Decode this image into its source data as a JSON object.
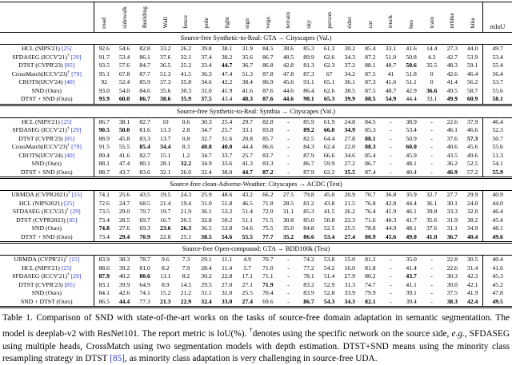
{
  "colors": {
    "citation_blue": "#2e3bd0",
    "text": "#000000"
  },
  "table": {
    "columns": [
      "road",
      "sidewalk",
      "Building",
      "Wall",
      "fence",
      "pole",
      "light",
      "sign",
      "vege.",
      "terrain",
      "sky",
      "person",
      "rider",
      "car",
      "truck",
      "bus",
      "train",
      "mbike",
      "bike",
      "mIoU"
    ],
    "sections": [
      {
        "title": "Source-free Synthetic-to-Real: GTA → Cityscapes (Val.)",
        "rows": [
          {
            "name": "HCL (NIPS'21)",
            "dagger": false,
            "ref": "[25]",
            "values": [
              "92.6",
              "54.6",
              "82.8",
              "33.2",
              "26.2",
              "39.8",
              "38.1",
              "31.9",
              "84.5",
              "38.6",
              "85.3",
              "61.3",
              "30.2",
              "85.4",
              "33.1",
              "41.6",
              "14.4",
              "27.3",
              "44.0",
              "49.7"
            ],
            "bold": []
          },
          {
            "name": "SFDASEG (ICCV'21)",
            "dagger": true,
            "ref": "[29]",
            "values": [
              "91.7",
              "53.4",
              "86.1",
              "37.6",
              "32.1",
              "37.4",
              "38.2",
              "35.6",
              "86.7",
              "48.5",
              "89.9",
              "62.6",
              "34.3",
              "87.2",
              "51.0",
              "50.8",
              "4.2",
              "42.7",
              "53.9",
              "53.4"
            ],
            "bold": []
          },
          {
            "name": "DTST (CVPR'23)",
            "dagger": false,
            "ref": "[85]",
            "values": [
              "93.5",
              "57.6",
              "84.7",
              "36.5",
              "25.2",
              "33.4",
              "44.7",
              "36.7",
              "86.8",
              "42.8",
              "81.3",
              "62.3",
              "37.2",
              "88.1",
              "48.7",
              "50.6",
              "35.5",
              "48.3",
              "59.1",
              "55.4"
            ],
            "bold": [
              6,
              15
            ]
          },
          {
            "name": "CrossMatch(ICCV'23)",
            "dagger": true,
            "ref": "[79]",
            "values": [
              "95.1",
              "67.8",
              "87.7",
              "51.3",
              "41.5",
              "36.3",
              "47.4",
              "51.3",
              "87.8",
              "47.8",
              "87.3",
              "67",
              "34.2",
              "87.5",
              "41",
              "51.8",
              "0",
              "42.6",
              "46.4",
              "56.4"
            ],
            "bold": []
          },
          {
            "name": "CROTS(IJCV'24)",
            "dagger": false,
            "ref": "[40]",
            "values": [
              "92",
              "52.4",
              "85.9",
              "37.3",
              "35.8",
              "34.6",
              "42.2",
              "38.4",
              "86.9",
              "45.6",
              "91.1",
              "65.1",
              "36.1",
              "87.3",
              "41.6",
              "51.1",
              "0",
              "41.4",
              "56.2",
              "53.7"
            ],
            "bold": []
          },
          {
            "name": "SND (Ours)",
            "dagger": false,
            "ref": "",
            "values": [
              "93.0",
              "54.0",
              "84.6",
              "35.6",
              "30.3",
              "31.0",
              "41.9",
              "41.6",
              "87.6",
              "44.6",
              "86.4",
              "62.6",
              "38.5",
              "87.5",
              "48.7",
              "42.9",
              "36.6",
              "49.5",
              "58.7",
              "55.6"
            ],
            "bold": [
              16
            ]
          },
          {
            "name": "DTST + SND (Ours)",
            "dagger": false,
            "ref": "",
            "values": [
              "93.9",
              "60.0",
              "86.7",
              "38.6",
              "35.9",
              "37.5",
              "43.4",
              "48.3",
              "87.6",
              "44.6",
              "90.1",
              "65.3",
              "39.9",
              "88.5",
              "54.9",
              "44.4",
              "33.1",
              "49.9",
              "60.9",
              "58.1"
            ],
            "bold": [
              0,
              1,
              2,
              3,
              4,
              5,
              7,
              8,
              9,
              10,
              11,
              12,
              13,
              14,
              17,
              18,
              19
            ]
          }
        ]
      },
      {
        "title": "Source-free Synthetic-to-Real: Synthia → Cityscapes (Val.)",
        "rows": [
          {
            "name": "HCL (NIPS'21)",
            "dagger": false,
            "ref": "[25]",
            "values": [
              "86.7",
              "38.1",
              "82.7",
              "10",
              "0.6",
              "30.3",
              "25.4",
              "29.7",
              "82.8",
              "-",
              "85.9",
              "61.9",
              "24.8",
              "84.5",
              "-",
              "38.9",
              "-",
              "22.6",
              "37.9",
              "46.4"
            ],
            "bold": []
          },
          {
            "name": "SFDASEG (ICCV'21)",
            "dagger": true,
            "ref": "[29]",
            "values": [
              "90.5",
              "50.0",
              "81.6",
              "13.3",
              "2.8",
              "34.7",
              "25.7",
              "33.1",
              "83.8",
              "-",
              "89.2",
              "66.0",
              "34.9",
              "85.3",
              "-",
              "53.4",
              "-",
              "46.1",
              "46.6",
              "52.3"
            ],
            "bold": [
              0,
              1,
              10,
              11,
              12
            ]
          },
          {
            "name": "DTST (CVPR'23)",
            "dagger": false,
            "ref": "[85]",
            "values": [
              "88.9",
              "45.8",
              "83.3",
              "13.7",
              "0.8",
              "32.7",
              "31.6",
              "20.8",
              "85.7",
              "-",
              "82.5",
              "64.4",
              "27.8",
              "88.1",
              "-",
              "50.9",
              "-",
              "37.6",
              "57.3",
              "50.7"
            ],
            "bold": [
              13,
              18
            ]
          },
          {
            "name": "CrossMatch(ICCV'23)",
            "dagger": true,
            "ref": "[79]",
            "values": [
              "91.5",
              "55.5",
              "85.4",
              "34.4",
              "8.3",
              "40.8",
              "40.0",
              "44.4",
              "86.6",
              "-",
              "84.3",
              "62.4",
              "22.0",
              "88.3",
              "-",
              "60.0",
              "-",
              "40.6",
              "45.6",
              "55.6"
            ],
            "bold": [
              2,
              3,
              5,
              6,
              13,
              15
            ]
          },
          {
            "name": "CROTS(IJCV'24)",
            "dagger": false,
            "ref": "[40]",
            "values": [
              "89.4",
              "41.6",
              "82.7",
              "15.1",
              "1.2",
              "34.7",
              "33.7",
              "25.7",
              "83.7",
              "-",
              "87.9",
              "66.6",
              "34.6",
              "85.4",
              "-",
              "45.9",
              "-",
              "43.5",
              "49.6",
              "51.3"
            ],
            "bold": []
          },
          {
            "name": "SND (Ours)",
            "dagger": false,
            "ref": "",
            "values": [
              "88.1",
              "47.4",
              "80.1",
              "28.1",
              "32.2",
              "34.9",
              "33.6",
              "41.3",
              "83.3",
              "-",
              "86.7",
              "59.9",
              "27.2",
              "86.7",
              "-",
              "48.1",
              "-",
              "36.2",
              "52.5",
              "54.1"
            ],
            "bold": [
              4
            ]
          },
          {
            "name": "DTST + SND (Ours)",
            "dagger": false,
            "ref": "",
            "values": [
              "88.7",
              "43.7",
              "83.6",
              "32.1",
              "26.0",
              "32.4",
              "38.0",
              "44.7",
              "87.2",
              "-",
              "87.9",
              "62.2",
              "35.5",
              "87.4",
              "-",
              "40.4",
              "-",
              "46.9",
              "57.2",
              "55.9"
            ],
            "bold": [
              7,
              8,
              12,
              17,
              19
            ]
          }
        ]
      },
      {
        "title": "Source-free clean-Adverse-Weather: Cityscapes → ACDC (Test)",
        "rows": [
          {
            "name": "URMDA (CVPR2021)",
            "dagger": true,
            "ref": "[15]",
            "values": [
              "74.1",
              "25.6",
              "43.5",
              "19.5",
              "24.3",
              "25.9",
              "48.6",
              "43.2",
              "66.2",
              "27.5",
              "79.8",
              "45.0",
              "20.9",
              "70.7",
              "36.8",
              "35.9",
              "32.7",
              "27.7",
              "29.9",
              "40.9"
            ],
            "bold": []
          },
          {
            "name": "HCL (NIPS2021)",
            "dagger": false,
            "ref": "[25]",
            "values": [
              "72.6",
              "24.7",
              "68.5",
              "21.4",
              "19.4",
              "31.0",
              "51.8",
              "46.5",
              "71.8",
              "28.5",
              "81.2",
              "43.8",
              "21.5",
              "76.8",
              "42.8",
              "44.4",
              "36.1",
              "30.1",
              "24.0",
              "44.0"
            ],
            "bold": []
          },
          {
            "name": "SFDASEG (ICCV21)",
            "dagger": true,
            "ref": "[29]",
            "values": [
              "73.5",
              "29.0",
              "70.7",
              "19.7",
              "21.9",
              "36.1",
              "53.2",
              "51.4",
              "72.0",
              "31.1",
              "85.3",
              "41.5",
              "26.2",
              "76.4",
              "41.9",
              "46.1",
              "39.8",
              "33.3",
              "32.0",
              "46.4"
            ],
            "bold": []
          },
          {
            "name": "DTST (CVPR2023)",
            "dagger": false,
            "ref": "[85]",
            "values": [
              "73.4",
              "28.5",
              "69.7",
              "16.7",
              "20.5",
              "32.8",
              "50.2",
              "51.1",
              "71.5",
              "30.8",
              "85.0",
              "50.8",
              "22.3",
              "71.6",
              "40.3",
              "41.7",
              "35.6",
              "31.9",
              "38.2",
              "45.4"
            ],
            "bold": []
          },
          {
            "name": "SND (Ours)",
            "dagger": false,
            "ref": "",
            "values": [
              "74.8",
              "27.6",
              "69.3",
              "23.6",
              "26.3",
              "36.5",
              "52.8",
              "54.6",
              "75.5",
              "35.0",
              "84.8",
              "52.5",
              "25.5",
              "78.8",
              "44.9",
              "48.1",
              "37.6",
              "31.1",
              "34.9",
              "48.1"
            ],
            "bold": [
              0,
              3,
              4
            ]
          },
          {
            "name": "DTST + SND (Ours)",
            "dagger": false,
            "ref": "",
            "values": [
              "73.4",
              "29.4",
              "70.9",
              "22.0",
              "25.1",
              "38.5",
              "54.6",
              "55.5",
              "77.7",
              "35.2",
              "86.6",
              "53.4",
              "27.4",
              "80.9",
              "45.6",
              "49.0",
              "41.0",
              "36.7",
              "40.4",
              "49.6"
            ],
            "bold": [
              1,
              2,
              5,
              6,
              7,
              8,
              9,
              10,
              11,
              12,
              13,
              14,
              15,
              16,
              17,
              18,
              19
            ]
          }
        ]
      },
      {
        "title": "Source-free Open-compound: GTA → BDD100k (Test)",
        "rows": [
          {
            "name": "URMDA (CVPR'21)",
            "dagger": true,
            "ref": "[15]",
            "values": [
              "83.9",
              "38.3",
              "78.7",
              "9.6",
              "7.3",
              "29.1",
              "11.1",
              "4.9",
              "70.7",
              "-",
              "74.2",
              "53.8",
              "15.0",
              "81.2",
              "-",
              "35.0",
              "-",
              "22.8",
              "30.5",
              "40.4"
            ],
            "bold": []
          },
          {
            "name": "HCL (NIPS'21)",
            "dagger": false,
            "ref": "[25]",
            "values": [
              "88.6",
              "39.2",
              "81.0",
              "8.2",
              "7.9",
              "28.4",
              "11.4",
              "5.7",
              "71.0",
              "-",
              "77.2",
              "54.2",
              "16.0",
              "81.8",
              "-",
              "41.4",
              "-",
              "22.6",
              "31.4",
              "41.6"
            ],
            "bold": []
          },
          {
            "name": "SFDASEG (ICCV'21)",
            "dagger": true,
            "ref": "[29]",
            "values": [
              "87.9",
              "40.2",
              "80.6",
              "13.1",
              "8.2",
              "30.2",
              "22.8",
              "17.1",
              "71.1",
              "-",
              "78.1",
              "51.4",
              "27.9",
              "80.2",
              "-",
              "43.7",
              "-",
              "30.3",
              "42.3",
              "45.3"
            ],
            "bold": [
              0,
              2,
              15
            ]
          },
          {
            "name": "DTST (CVPR'23)",
            "dagger": false,
            "ref": "[85]",
            "values": [
              "83.1",
              "39.9",
              "64.9",
              "8.9",
              "14.5",
              "29.5",
              "27.0",
              "27.1",
              "71.9",
              "-",
              "83.2",
              "52.9",
              "31.3",
              "74.7",
              "-",
              "41.1",
              "-",
              "30.0",
              "42.1",
              "45.2"
            ],
            "bold": [
              8
            ]
          },
          {
            "name": "SND (Ours)",
            "dagger": false,
            "ref": "",
            "values": [
              "84.1",
              "42.6",
              "74.1",
              "15.2",
              "21.2",
              "31.1",
              "31.0",
              "25.5",
              "70.4",
              "-",
              "83.9",
              "52.8",
              "33.9",
              "79.9",
              "-",
              "39.1",
              "-",
              "37.5",
              "41.9",
              "47.8"
            ],
            "bold": []
          },
          {
            "name": "SND + DTST (Ours)",
            "dagger": false,
            "ref": "",
            "values": [
              "86.5",
              "44.4",
              "77.3",
              "21.3",
              "22.9",
              "32.4",
              "33.0",
              "27.4",
              "69.6",
              "-",
              "86.7",
              "54.3",
              "34.3",
              "82.1",
              "-",
              "39.4",
              "-",
              "38.3",
              "42.4",
              "49.5"
            ],
            "bold": [
              1,
              3,
              4,
              5,
              6,
              7,
              10,
              11,
              12,
              13,
              17,
              18,
              19
            ]
          }
        ]
      }
    ]
  },
  "caption": {
    "segments": [
      {
        "t": "Table 1. Comparison of SND with state-of-the-art works on the tasks of source-free domain adaptation in semantic segmentation. The model is deeplab-v2 with ResNet101. The report metric is IoU(%). ",
        "s": "normal"
      },
      {
        "t": "†",
        "s": "sup"
      },
      {
        "t": "denotes using the specific network on the source side, ",
        "s": "normal"
      },
      {
        "t": "e.g.",
        "s": "italic"
      },
      {
        "t": ", SFDASEG using multiple heads, CrossMatch using two segmentation models with depth estimation.  DTST+SND means using the minority class resampling strategy in DTST ",
        "s": "normal"
      },
      {
        "t": "[85]",
        "s": "cite"
      },
      {
        "t": ", as minority class adaptation is very challenging in source-free UDA.",
        "s": "normal"
      }
    ]
  }
}
